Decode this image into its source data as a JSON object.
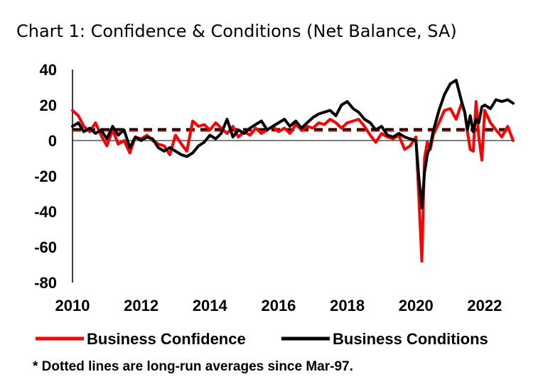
{
  "chart_data": {
    "type": "line",
    "title": "Chart 1: Confidence & Conditions (Net Balance, SA)",
    "xlabel": "",
    "ylabel": "",
    "xlim": [
      2010,
      2022.83
    ],
    "ylim": [
      -80,
      40
    ],
    "y_ticks": [
      40,
      20,
      0,
      -20,
      -40,
      -60,
      -80
    ],
    "y_tick_labels": [
      "40",
      "20",
      "0",
      "-20",
      "-40",
      "-60",
      "-80"
    ],
    "x_ticks": [
      2010,
      2012,
      2014,
      2016,
      2018,
      2020,
      2022
    ],
    "x_tick_labels": [
      "2010",
      "2012",
      "2014",
      "2016",
      "2018",
      "2020",
      "2022"
    ],
    "legend_position": "bottom",
    "footnote": "* Dotted lines are long-run averages since Mar-97.",
    "series": [
      {
        "name": "Business Confidence",
        "color": "#ff0000",
        "long_run_average": 6,
        "x": [
          2010.0,
          2010.17,
          2010.33,
          2010.5,
          2010.67,
          2010.83,
          2011.0,
          2011.17,
          2011.33,
          2011.5,
          2011.67,
          2011.83,
          2012.0,
          2012.17,
          2012.33,
          2012.5,
          2012.67,
          2012.83,
          2013.0,
          2013.17,
          2013.33,
          2013.5,
          2013.67,
          2013.83,
          2014.0,
          2014.17,
          2014.33,
          2014.5,
          2014.67,
          2014.83,
          2015.0,
          2015.17,
          2015.33,
          2015.5,
          2015.67,
          2015.83,
          2016.0,
          2016.17,
          2016.33,
          2016.5,
          2016.67,
          2016.83,
          2017.0,
          2017.17,
          2017.33,
          2017.5,
          2017.67,
          2017.83,
          2018.0,
          2018.17,
          2018.33,
          2018.5,
          2018.67,
          2018.83,
          2019.0,
          2019.17,
          2019.33,
          2019.5,
          2019.67,
          2019.83,
          2020.0,
          2020.08,
          2020.17,
          2020.25,
          2020.33,
          2020.42,
          2020.5,
          2020.67,
          2020.83,
          2021.0,
          2021.17,
          2021.33,
          2021.42,
          2021.5,
          2021.58,
          2021.67,
          2021.75,
          2021.83,
          2021.92,
          2022.0,
          2022.17,
          2022.33,
          2022.5,
          2022.67,
          2022.83
        ],
        "values": [
          17,
          14,
          8,
          5,
          10,
          3,
          -3,
          6,
          -2,
          0,
          -7,
          2,
          1,
          3,
          0,
          -2,
          -3,
          -8,
          3,
          -2,
          -6,
          11,
          8,
          9,
          6,
          10,
          7,
          4,
          8,
          2,
          5,
          3,
          7,
          4,
          6,
          8,
          5,
          7,
          4,
          9,
          6,
          8,
          7,
          10,
          9,
          12,
          10,
          7,
          10,
          11,
          12,
          8,
          3,
          -1,
          4,
          2,
          1,
          3,
          -5,
          -3,
          2,
          -30,
          -68,
          -10,
          -1,
          -5,
          3,
          10,
          17,
          18,
          12,
          21,
          16,
          5,
          -5,
          -6,
          22,
          2,
          -11,
          17,
          10,
          6,
          2,
          8,
          0
        ]
      },
      {
        "name": "Business Conditions",
        "color": "#000000",
        "long_run_average": 6,
        "x": [
          2010.0,
          2010.17,
          2010.33,
          2010.5,
          2010.67,
          2010.83,
          2011.0,
          2011.17,
          2011.33,
          2011.5,
          2011.67,
          2011.83,
          2012.0,
          2012.17,
          2012.33,
          2012.5,
          2012.67,
          2012.83,
          2013.0,
          2013.17,
          2013.33,
          2013.5,
          2013.67,
          2013.83,
          2014.0,
          2014.17,
          2014.33,
          2014.5,
          2014.67,
          2014.83,
          2015.0,
          2015.17,
          2015.33,
          2015.5,
          2015.67,
          2015.83,
          2016.0,
          2016.17,
          2016.33,
          2016.5,
          2016.67,
          2016.83,
          2017.0,
          2017.17,
          2017.33,
          2017.5,
          2017.67,
          2017.83,
          2018.0,
          2018.17,
          2018.33,
          2018.5,
          2018.67,
          2018.83,
          2019.0,
          2019.17,
          2019.33,
          2019.5,
          2019.67,
          2019.83,
          2020.0,
          2020.08,
          2020.17,
          2020.25,
          2020.33,
          2020.42,
          2020.5,
          2020.67,
          2020.83,
          2021.0,
          2021.17,
          2021.33,
          2021.42,
          2021.5,
          2021.58,
          2021.67,
          2021.75,
          2021.83,
          2021.92,
          2022.0,
          2022.17,
          2022.33,
          2022.5,
          2022.67,
          2022.83
        ],
        "values": [
          8,
          10,
          5,
          7,
          4,
          6,
          1,
          8,
          3,
          6,
          -4,
          2,
          0,
          2,
          1,
          -4,
          -6,
          -4,
          -6,
          -8,
          -9,
          -7,
          -3,
          -1,
          3,
          1,
          4,
          12,
          2,
          6,
          4,
          7,
          9,
          11,
          6,
          8,
          10,
          12,
          8,
          11,
          7,
          10,
          13,
          15,
          16,
          17,
          14,
          20,
          22,
          18,
          16,
          12,
          10,
          6,
          8,
          3,
          2,
          4,
          2,
          1,
          0,
          -20,
          -38,
          -18,
          -8,
          -3,
          5,
          17,
          26,
          32,
          34,
          22,
          16,
          6,
          14,
          5,
          12,
          10,
          19,
          20,
          18,
          23,
          22,
          23,
          21
        ]
      }
    ]
  }
}
